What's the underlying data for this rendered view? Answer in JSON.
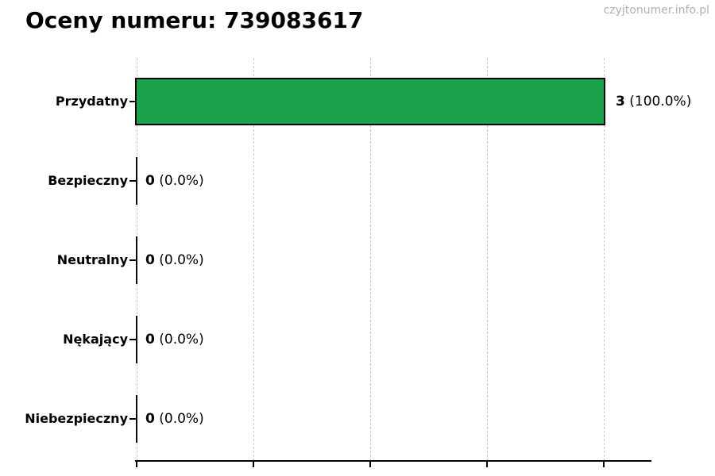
{
  "header": {
    "title": "Oceny numeru: 739083617",
    "watermark": "czyjtonumer.info.pl"
  },
  "chart_data": {
    "type": "bar",
    "orientation": "horizontal",
    "title": "Oceny numeru: 739083617",
    "categories": [
      "Przydatny",
      "Bezpieczny",
      "Neutralny",
      "Nękający",
      "Niebezpieczny"
    ],
    "values": [
      3,
      0,
      0,
      0,
      0
    ],
    "percent_labels": [
      "100.0%",
      "0.0%",
      "0.0%",
      "0.0%",
      "0.0%"
    ],
    "value_labels": [
      "3 (100.0%)",
      "0 (0.0%)",
      "0 (0.0%)",
      "0 (0.0%)",
      "0 (0.0%)"
    ],
    "xlim": [
      0,
      3.31
    ],
    "x_gridline_values": [
      0,
      0.75,
      1.5,
      2.25,
      3
    ],
    "x_tick_labels_shown": false,
    "grid": true,
    "legend": "none",
    "bar_color": "#1aa34a",
    "bar_edge_color": "#0a0a0a",
    "gridline_color": "#c9c9c9"
  }
}
